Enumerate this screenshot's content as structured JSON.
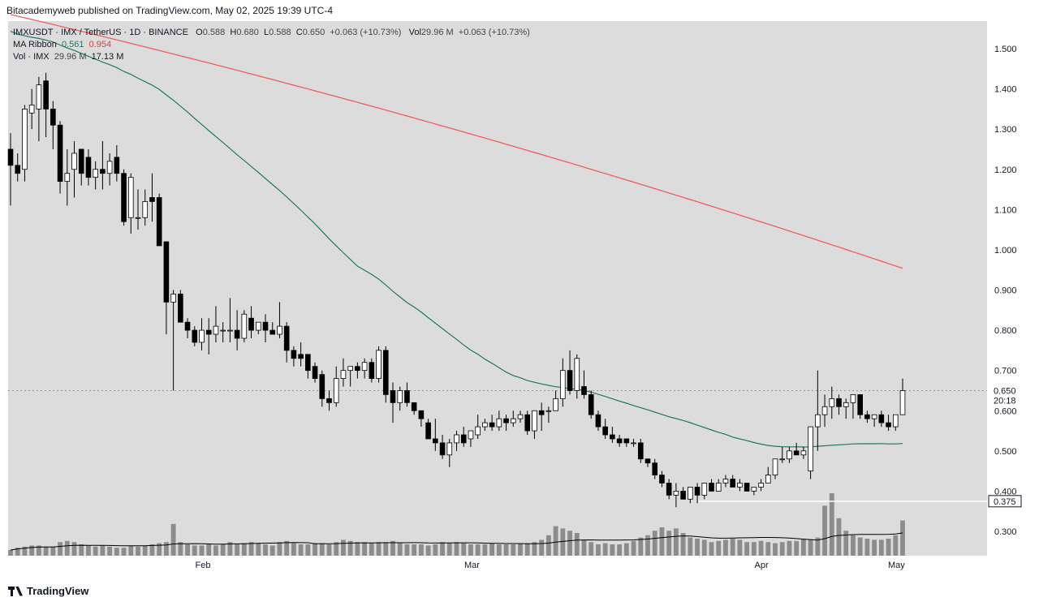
{
  "header": {
    "caption": "Bitacademyweb published on TradingView.com, May 02, 2025 19:39 UTC-4"
  },
  "legend": {
    "symbol": "IMXUSDT · IMX / TetherUS · 1D · BINANCE",
    "o_label": "O",
    "o_value": "0.588",
    "h_label": "H",
    "h_value": "0.680",
    "l_label": "L",
    "l_value": "0.588",
    "c_label": "C",
    "c_value": "0.650",
    "change": "+0.063 (+10.73%)",
    "vol_label": "Vol",
    "vol_value": "29.96 M",
    "vol_change": "+0.063 (+10.73%)",
    "ma_label": "MA Ribbon",
    "ma_fast": "0.561",
    "ma_slow": "0.954",
    "vol_row_label": "Vol · IMX",
    "vol_row_value": "29.96 M",
    "vol_row_ma": "17.13 M"
  },
  "footer": {
    "brand": "TradingView"
  },
  "colors": {
    "plot_bg": "#dcdcdc",
    "up_body": "#ffffff",
    "down_body": "#000000",
    "wick": "#000000",
    "ma_fast": "#1e7a5a",
    "ma_slow": "#f05454",
    "volume": "#8c8c8c",
    "volume_ma": "#000000",
    "support_line": "#ffffff"
  },
  "chart_data": {
    "type": "candlestick",
    "title": "IMXUSDT · IMX / TetherUS · 1D · BINANCE",
    "x_ticks": [
      "Feb",
      "Mar",
      "Apr",
      "May"
    ],
    "y_ticks": [
      "1.500",
      "1.400",
      "1.300",
      "1.200",
      "1.100",
      "1.000",
      "0.900",
      "0.800",
      "0.700",
      "0.600",
      "0.500",
      "0.400",
      "0.300"
    ],
    "y_range": [
      0.24,
      1.58
    ],
    "last_price_tag": "0.650",
    "countdown_tag": "20:18",
    "support_level": 0.375,
    "support_tag": "0.375",
    "grid": false,
    "candles": [
      [
        1.25,
        1.29,
        1.11,
        1.21
      ],
      [
        1.21,
        1.24,
        1.17,
        1.19
      ],
      [
        1.2,
        1.36,
        1.17,
        1.35
      ],
      [
        1.34,
        1.4,
        1.3,
        1.36
      ],
      [
        1.35,
        1.43,
        1.27,
        1.41
      ],
      [
        1.42,
        1.44,
        1.28,
        1.35
      ],
      [
        1.35,
        1.37,
        1.25,
        1.31
      ],
      [
        1.31,
        1.32,
        1.14,
        1.17
      ],
      [
        1.17,
        1.25,
        1.11,
        1.19
      ],
      [
        1.2,
        1.27,
        1.13,
        1.24
      ],
      [
        1.25,
        1.25,
        1.16,
        1.19
      ],
      [
        1.23,
        1.25,
        1.16,
        1.18
      ],
      [
        1.18,
        1.22,
        1.15,
        1.2
      ],
      [
        1.2,
        1.27,
        1.15,
        1.19
      ],
      [
        1.19,
        1.24,
        1.16,
        1.22
      ],
      [
        1.23,
        1.26,
        1.17,
        1.19
      ],
      [
        1.19,
        1.2,
        1.06,
        1.07
      ],
      [
        1.08,
        1.19,
        1.04,
        1.18
      ],
      [
        1.08,
        1.15,
        1.05,
        1.08
      ],
      [
        1.08,
        1.15,
        1.06,
        1.12
      ],
      [
        1.13,
        1.19,
        1.07,
        1.12
      ],
      [
        1.13,
        1.14,
        1.01,
        1.01
      ],
      [
        1.02,
        1.02,
        0.79,
        0.87
      ],
      [
        0.87,
        0.9,
        0.65,
        0.89
      ],
      [
        0.89,
        0.9,
        0.82,
        0.82
      ],
      [
        0.82,
        0.83,
        0.78,
        0.8
      ],
      [
        0.8,
        0.81,
        0.76,
        0.77
      ],
      [
        0.77,
        0.83,
        0.75,
        0.8
      ],
      [
        0.8,
        0.83,
        0.74,
        0.79
      ],
      [
        0.79,
        0.86,
        0.77,
        0.81
      ],
      [
        0.8,
        0.82,
        0.77,
        0.8
      ],
      [
        0.8,
        0.88,
        0.77,
        0.8
      ],
      [
        0.8,
        0.85,
        0.75,
        0.78
      ],
      [
        0.78,
        0.85,
        0.77,
        0.84
      ],
      [
        0.83,
        0.86,
        0.78,
        0.8
      ],
      [
        0.8,
        0.82,
        0.79,
        0.82
      ],
      [
        0.82,
        0.84,
        0.77,
        0.8
      ],
      [
        0.8,
        0.82,
        0.79,
        0.79
      ],
      [
        0.79,
        0.87,
        0.78,
        0.81
      ],
      [
        0.81,
        0.82,
        0.72,
        0.75
      ],
      [
        0.75,
        0.76,
        0.71,
        0.73
      ],
      [
        0.74,
        0.77,
        0.71,
        0.73
      ],
      [
        0.74,
        0.74,
        0.68,
        0.7
      ],
      [
        0.71,
        0.72,
        0.67,
        0.68
      ],
      [
        0.69,
        0.7,
        0.61,
        0.63
      ],
      [
        0.63,
        0.65,
        0.6,
        0.62
      ],
      [
        0.62,
        0.71,
        0.61,
        0.68
      ],
      [
        0.68,
        0.73,
        0.66,
        0.7
      ],
      [
        0.7,
        0.71,
        0.66,
        0.71
      ],
      [
        0.71,
        0.72,
        0.68,
        0.7
      ],
      [
        0.7,
        0.73,
        0.68,
        0.72
      ],
      [
        0.72,
        0.73,
        0.67,
        0.68
      ],
      [
        0.68,
        0.76,
        0.67,
        0.75
      ],
      [
        0.75,
        0.76,
        0.62,
        0.64
      ],
      [
        0.65,
        0.67,
        0.57,
        0.62
      ],
      [
        0.62,
        0.66,
        0.6,
        0.65
      ],
      [
        0.65,
        0.67,
        0.61,
        0.62
      ],
      [
        0.62,
        0.62,
        0.59,
        0.6
      ],
      [
        0.6,
        0.6,
        0.56,
        0.58
      ],
      [
        0.57,
        0.58,
        0.53,
        0.53
      ],
      [
        0.53,
        0.58,
        0.5,
        0.52
      ],
      [
        0.52,
        0.54,
        0.48,
        0.49
      ],
      [
        0.49,
        0.53,
        0.46,
        0.52
      ],
      [
        0.52,
        0.55,
        0.5,
        0.54
      ],
      [
        0.54,
        0.56,
        0.51,
        0.52
      ],
      [
        0.53,
        0.55,
        0.51,
        0.55
      ],
      [
        0.54,
        0.59,
        0.53,
        0.56
      ],
      [
        0.56,
        0.58,
        0.55,
        0.57
      ],
      [
        0.57,
        0.59,
        0.55,
        0.56
      ],
      [
        0.56,
        0.6,
        0.55,
        0.58
      ],
      [
        0.58,
        0.59,
        0.55,
        0.57
      ],
      [
        0.57,
        0.6,
        0.56,
        0.58
      ],
      [
        0.58,
        0.6,
        0.57,
        0.59
      ],
      [
        0.59,
        0.6,
        0.54,
        0.55
      ],
      [
        0.55,
        0.6,
        0.53,
        0.6
      ],
      [
        0.6,
        0.62,
        0.55,
        0.59
      ],
      [
        0.6,
        0.61,
        0.57,
        0.6
      ],
      [
        0.6,
        0.65,
        0.6,
        0.63
      ],
      [
        0.63,
        0.73,
        0.61,
        0.7
      ],
      [
        0.7,
        0.75,
        0.64,
        0.65
      ],
      [
        0.65,
        0.74,
        0.63,
        0.73
      ],
      [
        0.66,
        0.7,
        0.63,
        0.64
      ],
      [
        0.64,
        0.65,
        0.58,
        0.59
      ],
      [
        0.59,
        0.6,
        0.55,
        0.56
      ],
      [
        0.56,
        0.58,
        0.53,
        0.54
      ],
      [
        0.54,
        0.56,
        0.52,
        0.53
      ],
      [
        0.53,
        0.54,
        0.51,
        0.52
      ],
      [
        0.53,
        0.53,
        0.51,
        0.52
      ],
      [
        0.52,
        0.53,
        0.51,
        0.52
      ],
      [
        0.52,
        0.53,
        0.47,
        0.48
      ],
      [
        0.48,
        0.48,
        0.46,
        0.47
      ],
      [
        0.47,
        0.48,
        0.43,
        0.44
      ],
      [
        0.44,
        0.45,
        0.41,
        0.42
      ],
      [
        0.42,
        0.43,
        0.38,
        0.39
      ],
      [
        0.39,
        0.42,
        0.36,
        0.4
      ],
      [
        0.4,
        0.41,
        0.38,
        0.38
      ],
      [
        0.38,
        0.41,
        0.37,
        0.41
      ],
      [
        0.41,
        0.42,
        0.37,
        0.39
      ],
      [
        0.39,
        0.42,
        0.38,
        0.42
      ],
      [
        0.42,
        0.43,
        0.4,
        0.4
      ],
      [
        0.4,
        0.43,
        0.4,
        0.42
      ],
      [
        0.42,
        0.44,
        0.41,
        0.43
      ],
      [
        0.43,
        0.44,
        0.41,
        0.41
      ],
      [
        0.41,
        0.43,
        0.4,
        0.42
      ],
      [
        0.42,
        0.42,
        0.4,
        0.4
      ],
      [
        0.4,
        0.41,
        0.39,
        0.41
      ],
      [
        0.41,
        0.43,
        0.4,
        0.42
      ],
      [
        0.42,
        0.46,
        0.42,
        0.44
      ],
      [
        0.44,
        0.48,
        0.43,
        0.48
      ],
      [
        0.48,
        0.51,
        0.47,
        0.48
      ],
      [
        0.48,
        0.51,
        0.47,
        0.5
      ],
      [
        0.5,
        0.52,
        0.49,
        0.49
      ],
      [
        0.49,
        0.51,
        0.48,
        0.5
      ],
      [
        0.45,
        0.56,
        0.43,
        0.56
      ],
      [
        0.56,
        0.7,
        0.5,
        0.59
      ],
      [
        0.59,
        0.64,
        0.56,
        0.61
      ],
      [
        0.61,
        0.66,
        0.58,
        0.63
      ],
      [
        0.63,
        0.64,
        0.59,
        0.61
      ],
      [
        0.61,
        0.63,
        0.58,
        0.62
      ],
      [
        0.62,
        0.64,
        0.58,
        0.64
      ],
      [
        0.64,
        0.64,
        0.58,
        0.59
      ],
      [
        0.59,
        0.6,
        0.57,
        0.58
      ],
      [
        0.58,
        0.59,
        0.56,
        0.59
      ],
      [
        0.59,
        0.6,
        0.56,
        0.57
      ],
      [
        0.57,
        0.59,
        0.55,
        0.56
      ],
      [
        0.56,
        0.59,
        0.55,
        0.59
      ],
      [
        0.59,
        0.68,
        0.59,
        0.65
      ]
    ],
    "volumes": [
      [
        5,
        7,
        8,
        9,
        9,
        8,
        8,
        12,
        13,
        12,
        10,
        9,
        8,
        9,
        8,
        7,
        7,
        9,
        8,
        9,
        10,
        11,
        12,
        28,
        12,
        10,
        9,
        9,
        10,
        9,
        10,
        12,
        10,
        11,
        12,
        11,
        10,
        9,
        12,
        13,
        11,
        10,
        10,
        11,
        11,
        10,
        12,
        14,
        13,
        12,
        12,
        11,
        12,
        12,
        13,
        11,
        10,
        10,
        10,
        9,
        10,
        12,
        11,
        12,
        11,
        10,
        10,
        10,
        11,
        10,
        10,
        10,
        11,
        11,
        12,
        14,
        18,
        26,
        24,
        22,
        20,
        14,
        12,
        10,
        11,
        10,
        10,
        11,
        13,
        16,
        18,
        22,
        25,
        22,
        24,
        20,
        16,
        15,
        14,
        12,
        13,
        14,
        15,
        14,
        12,
        12,
        13,
        12,
        11,
        12,
        13,
        13,
        15,
        14,
        16,
        44,
        55,
        33,
        22,
        18,
        16,
        15,
        14,
        14,
        15,
        18,
        31
      ]
    ],
    "ma_fast_label": "MA Ribbon 0.561",
    "ma_slow_label": "0.954"
  }
}
